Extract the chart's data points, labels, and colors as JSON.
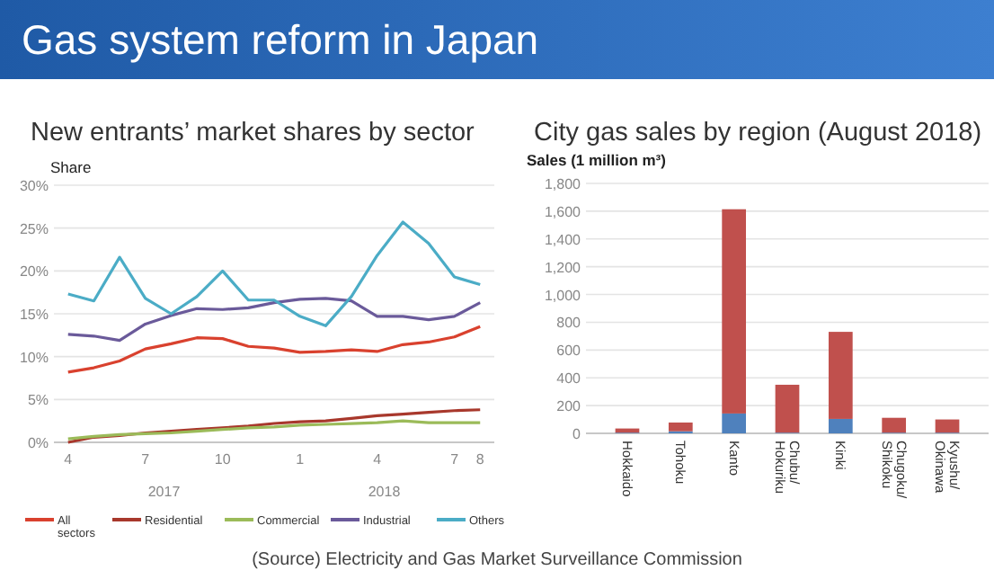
{
  "chart_data": [
    {
      "type": "other",
      "title": "Gas system reform in Japan",
      "annotations": [
        "(Source) Electricity and Gas Market Surveillance Commission"
      ]
    },
    {
      "type": "line",
      "title": "New entrants’ market shares by sector",
      "ylabel": "Share",
      "categories": [
        "4",
        null,
        null,
        "7",
        null,
        null,
        "10",
        null,
        null,
        "1",
        null,
        null,
        "4",
        null,
        null,
        "7",
        "8"
      ],
      "annotations": [
        "2017",
        "2018"
      ],
      "series": [
        {
          "name": "All sectors",
          "color": "#d9412e",
          "values": [
            8.2,
            8.7,
            9.5,
            10.9,
            11.5,
            12.2,
            12.1,
            11.2,
            11.0,
            10.5,
            10.6,
            10.8,
            10.6,
            11.4,
            11.7,
            12.3,
            13.5
          ]
        },
        {
          "name": "Residential",
          "color": "#a8382c",
          "values": [
            0,
            0.6,
            0.8,
            1.1,
            1.3,
            1.5,
            1.7,
            1.9,
            2.2,
            2.4,
            2.5,
            2.8,
            3.1,
            3.3,
            3.5,
            3.7,
            3.8
          ]
        },
        {
          "name": "Commercial",
          "color": "#9bbb59",
          "values": [
            0.4,
            0.7,
            0.9,
            1.0,
            1.1,
            1.3,
            1.5,
            1.7,
            1.8,
            2.0,
            2.1,
            2.2,
            2.3,
            2.5,
            2.3,
            2.3,
            2.3
          ]
        },
        {
          "name": "Industrial",
          "color": "#6a5a9a",
          "values": [
            12.6,
            12.4,
            11.9,
            13.8,
            14.8,
            15.6,
            15.5,
            15.7,
            16.3,
            16.7,
            16.8,
            16.5,
            14.7,
            14.7,
            14.3,
            14.7,
            16.3
          ]
        },
        {
          "name": "Others",
          "color": "#4bacc6",
          "values": [
            17.3,
            16.5,
            21.6,
            16.8,
            15.0,
            17.0,
            20.0,
            16.6,
            16.6,
            14.7,
            13.6,
            17.0,
            21.8,
            25.7,
            23.2,
            19.3,
            18.4
          ]
        }
      ],
      "ylim": [
        0,
        30
      ],
      "yticks": [
        {
          "value": 0,
          "label": "0%"
        },
        {
          "value": 5,
          "label": "5%"
        },
        {
          "value": 10,
          "label": "10%"
        },
        {
          "value": 15,
          "label": "15%"
        },
        {
          "value": 20,
          "label": "20%"
        },
        {
          "value": 25,
          "label": "25%"
        },
        {
          "value": 30,
          "label": "30%"
        }
      ],
      "grid": "y",
      "legend": "bottom"
    },
    {
      "type": "bar",
      "title": "City gas sales by region (August 2018)",
      "ylabel": "Sales (1 million m³)",
      "categories": [
        "Hokkaido",
        "Tohoku",
        "Kanto",
        "Chubu/Hokuriku",
        "Kinki",
        "Chugoku/Shikoku",
        "Kyushu/Okinawa"
      ],
      "stacked": true,
      "series": [
        {
          "color": "#4f81bd",
          "values": [
            5,
            15,
            143,
            5,
            104,
            5,
            5
          ]
        },
        {
          "color": "#c0504d",
          "values": [
            30,
            63,
            1471,
            345,
            627,
            107,
            95
          ]
        }
      ],
      "ylim": [
        0,
        1800
      ],
      "yticks": [
        0,
        200,
        400,
        600,
        800,
        {
          "value": 1000,
          "label": "1,000"
        },
        {
          "value": 1200,
          "label": "1,200"
        },
        {
          "value": 1400,
          "label": "1,400"
        },
        {
          "value": 1600,
          "label": "1,600"
        },
        {
          "value": 1800,
          "label": "1,800"
        }
      ],
      "grid": "y"
    }
  ]
}
